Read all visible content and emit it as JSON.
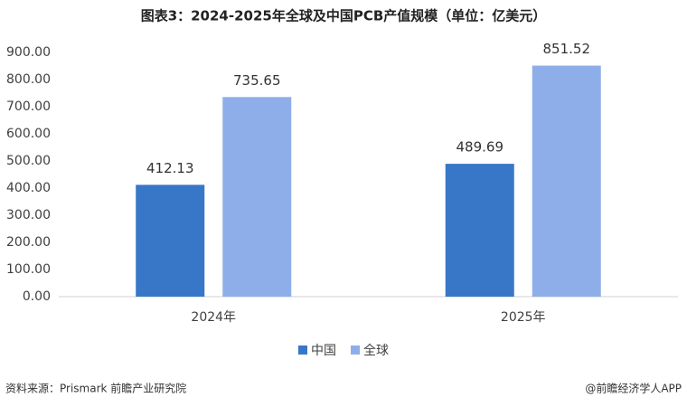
{
  "chart_data": {
    "type": "bar",
    "title": "图表3：2024-2025年全球及中国PCB产值规模（单位：亿美元）",
    "categories": [
      "2024年",
      "2025年"
    ],
    "series": [
      {
        "name": "中国",
        "color": "#3877c8",
        "values": [
          412.13,
          489.69
        ]
      },
      {
        "name": "全球",
        "color": "#8eaee9",
        "values": [
          735.65,
          851.52
        ]
      }
    ],
    "ylim": [
      0,
      900
    ],
    "yticks": [
      {
        "value": 0,
        "label": "0.00"
      },
      {
        "value": 100,
        "label": "100.00"
      },
      {
        "value": 200,
        "label": "200.00"
      },
      {
        "value": 300,
        "label": "300.00"
      },
      {
        "value": 400,
        "label": "400.00"
      },
      {
        "value": 500,
        "label": "500.00"
      },
      {
        "value": 600,
        "label": "600.00"
      },
      {
        "value": 700,
        "label": "700.00"
      },
      {
        "value": 800,
        "label": "800.00"
      },
      {
        "value": 900,
        "label": "900.00"
      }
    ],
    "grid": false,
    "legend": "bottom",
    "source": "资料来源：Prismark  前瞻产业研究院",
    "credit": "@前瞻经济学人APP"
  }
}
